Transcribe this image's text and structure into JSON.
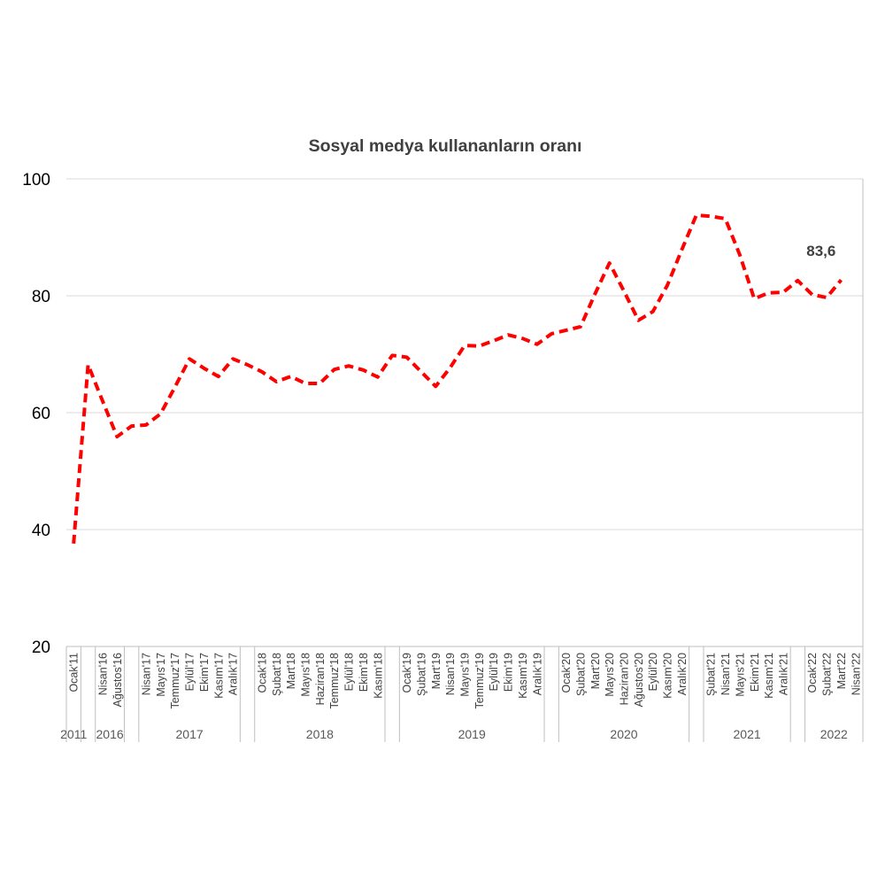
{
  "chart_data": {
    "type": "line",
    "title": "Sosyal medya kullananların oranı",
    "xlabel": "",
    "ylabel": "",
    "ylim": [
      20,
      100
    ],
    "yticks": [
      100,
      80,
      60,
      40,
      20
    ],
    "grid": true,
    "legend": "none",
    "categories": [
      "Ocak'11",
      "",
      "Nisan'16",
      "Ağustos'16",
      "",
      "Nisan'17",
      "Mayıs'17",
      "Temmuz'17",
      "Eylül'17",
      "Ekim'17",
      "Kasım'17",
      "Aralık'17",
      "",
      "Ocak'18",
      "Şubat'18",
      "Mart'18",
      "Mayıs'18",
      "Haziran'18",
      "Temmuz'18",
      "Eylül'18",
      "Ekim'18",
      "Kasım'18",
      "",
      "Ocak'19",
      "Şubat'19",
      "Mart'19",
      "Nisan'19",
      "Mayıs'19",
      "Temmuz'19",
      "Eylül'19",
      "Ekim'19",
      "Kasım'19",
      "Aralık'19",
      "",
      "Ocak'20",
      "Şubat'20",
      "Mart'20",
      "Mayıs'20",
      "Haziran'20",
      "Ağustos'20",
      "Eylül'20",
      "Kasım'20",
      "Aralık'20",
      "",
      "Şubat'21",
      "Nisan'21",
      "Mayıs'21",
      "Ekim'21",
      "Kasım'21",
      "Aralık'21",
      "",
      "Ocak'22",
      "Şubat'22",
      "Mart'22",
      "Nisan'22"
    ],
    "groups": [
      {
        "label": "2011",
        "count": 1
      },
      {
        "label": "",
        "count": 1
      },
      {
        "label": "2016",
        "count": 2
      },
      {
        "label": "",
        "count": 1
      },
      {
        "label": "2017",
        "count": 7
      },
      {
        "label": "",
        "count": 1
      },
      {
        "label": "2018",
        "count": 9
      },
      {
        "label": "",
        "count": 1
      },
      {
        "label": "2019",
        "count": 10
      },
      {
        "label": "",
        "count": 1
      },
      {
        "label": "2020",
        "count": 9
      },
      {
        "label": "",
        "count": 1
      },
      {
        "label": "2021",
        "count": 6
      },
      {
        "label": "",
        "count": 1
      },
      {
        "label": "2022",
        "count": 4
      }
    ],
    "series": [
      {
        "color": "#ff0000",
        "line_style": "dashed",
        "values": [
          37.6,
          68.2,
          62.0,
          55.9,
          57.7,
          57.9,
          59.8,
          64.4,
          69.2,
          67.6,
          66.2,
          69.2,
          68.2,
          67.0,
          65.3,
          66.2,
          65.0,
          65.0,
          67.4,
          68.0,
          67.3,
          66.1,
          69.8,
          69.5,
          67.0,
          64.5,
          67.7,
          71.5,
          71.4,
          72.3,
          73.3,
          72.7,
          71.7,
          73.5,
          74.1,
          74.7,
          80.3,
          85.6,
          80.8,
          75.8,
          77.3,
          81.8,
          87.9,
          93.8,
          93.6,
          93.2,
          87.0,
          79.5,
          80.5,
          80.6,
          82.6,
          80.2,
          79.7,
          82.7,
          null
        ]
      }
    ],
    "annotations": [
      {
        "text": "83,6",
        "category": "Nisan'22",
        "value": 83.6
      }
    ],
    "colors": {
      "gridline": "#d9d9d9",
      "axis": "#bfbfbf"
    }
  }
}
